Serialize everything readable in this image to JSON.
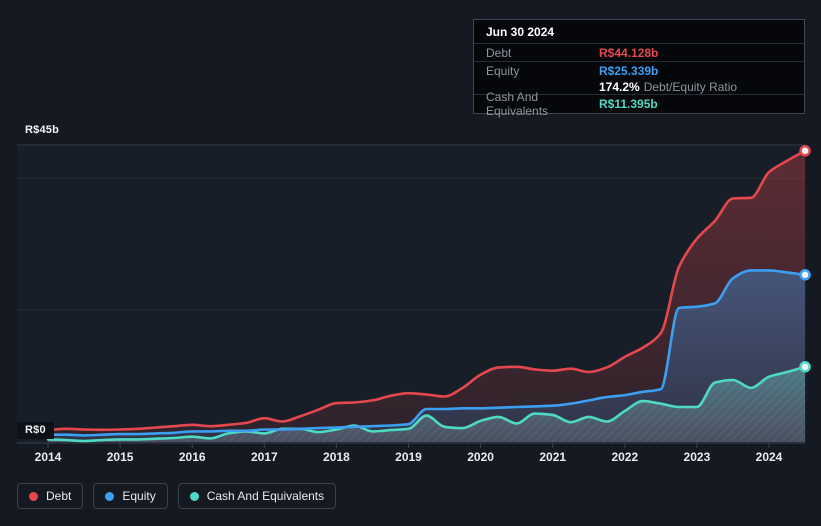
{
  "tooltip": {
    "date": "Jun 30 2024",
    "debt_label": "Debt",
    "debt_value": "R$44.128b",
    "equity_label": "Equity",
    "equity_value": "R$25.339b",
    "ratio_value": "174.2%",
    "ratio_label": "Debt/Equity Ratio",
    "cash_label": "Cash And Equivalents",
    "cash_value": "R$11.395b"
  },
  "axis": {
    "y_top_label": "R$45b",
    "y_zero_label": "R$0"
  },
  "legend": {
    "items": [
      {
        "label": "Debt",
        "color": "#e4484e"
      },
      {
        "label": "Equity",
        "color": "#3b9ff2"
      },
      {
        "label": "Cash And Equivalents",
        "color": "#4ed9c3"
      }
    ]
  },
  "colors": {
    "debt": "#e4484e",
    "equity": "#3b9ff2",
    "cash": "#4ed9c3",
    "background": "#151a22",
    "plot_background": "#181e27",
    "gridline_major": "#343b45",
    "gridline_minor": "#232932",
    "axis_line": "#3b424b",
    "tooltip_bg": "#05070b"
  },
  "chart_data": {
    "type": "area",
    "unit": "R$ billions",
    "x_ticks": [
      2014,
      2015,
      2016,
      2017,
      2018,
      2019,
      2020,
      2021,
      2022,
      2023,
      2024
    ],
    "x": [
      2014.0,
      2014.25,
      2014.5,
      2014.75,
      2015.0,
      2015.25,
      2015.5,
      2015.75,
      2016.0,
      2016.25,
      2016.5,
      2016.75,
      2017.0,
      2017.25,
      2017.5,
      2017.75,
      2018.0,
      2018.25,
      2018.5,
      2018.75,
      2019.0,
      2019.25,
      2019.5,
      2019.75,
      2020.0,
      2020.25,
      2020.5,
      2020.75,
      2021.0,
      2021.25,
      2021.5,
      2021.75,
      2022.0,
      2022.25,
      2022.5,
      2022.75,
      2023.0,
      2023.25,
      2023.5,
      2023.75,
      2024.0,
      2024.25,
      2024.5
    ],
    "xlim": [
      2014.0,
      2024.5
    ],
    "ylim": [
      0,
      45
    ],
    "gridlines": [
      45,
      40,
      20,
      0
    ],
    "legend_position": "bottom",
    "series": [
      {
        "name": "Debt",
        "color": "#e4484e",
        "values": [
          1.8,
          2.0,
          1.9,
          1.85,
          1.9,
          2.0,
          2.2,
          2.4,
          2.6,
          2.4,
          2.6,
          2.9,
          3.6,
          3.1,
          3.9,
          4.9,
          5.9,
          6.0,
          6.3,
          7.0,
          7.4,
          7.2,
          6.9,
          8.2,
          10.2,
          11.3,
          11.4,
          11.0,
          10.8,
          11.1,
          10.6,
          11.3,
          12.9,
          14.3,
          16.5,
          26.5,
          30.8,
          33.5,
          36.9,
          37.0,
          40.9,
          42.6,
          44.128
        ]
      },
      {
        "name": "Equity",
        "color": "#3b9ff2",
        "values": [
          1.1,
          1.1,
          1.0,
          1.1,
          1.2,
          1.2,
          1.3,
          1.4,
          1.6,
          1.6,
          1.7,
          1.7,
          1.9,
          1.9,
          2.0,
          2.1,
          2.2,
          2.3,
          2.4,
          2.5,
          2.7,
          5.0,
          5.0,
          5.1,
          5.1,
          5.2,
          5.3,
          5.4,
          5.5,
          5.8,
          6.3,
          6.8,
          7.1,
          7.6,
          8.0,
          20.3,
          20.5,
          21.0,
          24.8,
          26.0,
          26.0,
          25.7,
          25.339
        ]
      },
      {
        "name": "Cash And Equivalents",
        "color": "#4ed9c3",
        "values": [
          0.4,
          0.3,
          0.15,
          0.3,
          0.4,
          0.4,
          0.5,
          0.6,
          0.8,
          0.55,
          1.3,
          1.6,
          1.3,
          2.0,
          2.0,
          1.5,
          1.9,
          2.5,
          1.6,
          1.8,
          2.0,
          4.0,
          2.3,
          2.1,
          3.2,
          3.8,
          2.8,
          4.3,
          4.1,
          3.0,
          3.8,
          3.1,
          4.7,
          6.2,
          5.8,
          5.3,
          5.3,
          9.0,
          9.4,
          8.2,
          9.9,
          10.6,
          11.395
        ]
      }
    ]
  }
}
